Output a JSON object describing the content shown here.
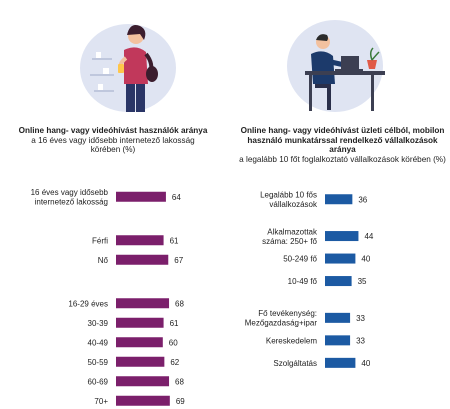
{
  "chart_data": [
    {
      "type": "bar",
      "orientation": "horizontal",
      "title": "Online hang- vagy videóhívást használók aránya",
      "subtitle": "a 16 éves vagy idősebb internetező lakosság körében (%)",
      "categories": [
        "16 éves vagy idősebb internetező lakosság",
        "Férfi",
        "Nő",
        "16-29 éves",
        "30-39",
        "40-49",
        "50-59",
        "60-69",
        "70+"
      ],
      "values": [
        64,
        61,
        67,
        68,
        61,
        60,
        62,
        68,
        69
      ],
      "groups": [
        [
          0
        ],
        [
          1,
          2
        ],
        [
          3,
          4,
          5,
          6,
          7,
          8
        ]
      ],
      "xlim": [
        0,
        100
      ],
      "color": "#7b1f6b",
      "grid": false,
      "legend": "none"
    },
    {
      "type": "bar",
      "orientation": "horizontal",
      "title": "Online hang- vagy videóhívást üzleti célból, mobilon használó munkatárssal rendelkező vállalkozások aránya",
      "subtitle": "a legalább 10 főt foglalkoztató vállalkozások körében (%)",
      "categories": [
        "Legalább 10 fős vállalkozások",
        "Alkalmazottak száma: 250+ fő",
        "50-249 fő",
        "10-49 fő",
        "Fő tevékenység: Mezőgazdaság+ipar",
        "Kereskedelem",
        "Szolgáltatás"
      ],
      "values": [
        36,
        44,
        40,
        35,
        33,
        33,
        40
      ],
      "groups": [
        [
          0
        ],
        [
          1,
          2,
          3
        ],
        [
          4,
          5,
          6
        ]
      ],
      "xlim": [
        0,
        100
      ],
      "color": "#1c5aa3",
      "grid": false,
      "legend": "none"
    }
  ],
  "colors": {
    "left_bar": "#7b1f6b",
    "right_bar": "#1c5aa3",
    "illustration_bg": "#dfe4f2",
    "skin": "#f3c19f",
    "person_left_shirt": "#c1385b",
    "person_right_shirt": "#1c3a6b"
  },
  "icons": {
    "left_illustration": "woman-with-smartphone-icon",
    "right_illustration": "man-at-laptop-desk-icon"
  }
}
